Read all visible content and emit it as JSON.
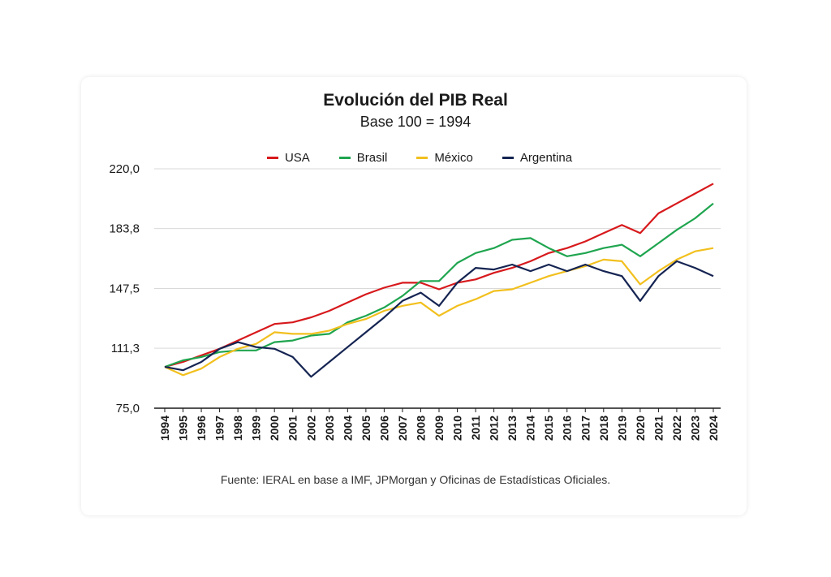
{
  "chart_data": {
    "type": "line",
    "title": "Evolución del PIB Real",
    "subtitle": "Base 100 = 1994",
    "source": "Fuente: IERAL en base a IMF, JPMorgan y Oficinas de Estadísticas Oficiales.",
    "ylim": [
      75,
      220
    ],
    "yticks": [
      "220,0",
      "183,8",
      "147,5",
      "111,3",
      "75,0"
    ],
    "ytick_values": [
      220,
      183.8,
      147.5,
      111.3,
      75
    ],
    "grid": true,
    "legend_position": "top-center",
    "x": [
      "1994",
      "1995",
      "1996",
      "1997",
      "1998",
      "1999",
      "2000",
      "2001",
      "2002",
      "2003",
      "2004",
      "2005",
      "2006",
      "2007",
      "2008",
      "2009",
      "2010",
      "2011",
      "2012",
      "2013",
      "2014",
      "2015",
      "2016",
      "2017",
      "2018",
      "2019",
      "2020",
      "2021",
      "2022",
      "2023",
      "2024"
    ],
    "series": [
      {
        "name": "USA",
        "color": "#d7191c",
        "values": [
          100,
          103,
          107,
          111,
          116,
          121,
          126,
          127,
          130,
          134,
          139,
          144,
          148,
          151,
          151,
          147,
          151,
          153,
          157,
          160,
          164,
          169,
          172,
          176,
          181,
          186,
          181,
          193,
          199,
          205,
          211
        ]
      },
      {
        "name": "Brasil",
        "color": "#1fa54f",
        "values": [
          100,
          104,
          106,
          109,
          110,
          110,
          115,
          116,
          119,
          120,
          127,
          131,
          136,
          143,
          152,
          152,
          163,
          169,
          172,
          177,
          178,
          172,
          167,
          169,
          172,
          174,
          167,
          175,
          183,
          190,
          199
        ]
      },
      {
        "name": "México",
        "color": "#f2c01e",
        "values": [
          100,
          95,
          99,
          106,
          111,
          114,
          121,
          120,
          120,
          122,
          126,
          129,
          134,
          137,
          139,
          131,
          137,
          141,
          146,
          147,
          151,
          155,
          158,
          161,
          165,
          164,
          150,
          158,
          165,
          170,
          172
        ]
      },
      {
        "name": "Argentina",
        "color": "#152452",
        "values": [
          100,
          98,
          103,
          111,
          115,
          112,
          111,
          106,
          94,
          103,
          112,
          121,
          130,
          140,
          145,
          137,
          151,
          160,
          159,
          162,
          158,
          162,
          158,
          162,
          158,
          155,
          140,
          155,
          164,
          160,
          155
        ]
      }
    ]
  }
}
